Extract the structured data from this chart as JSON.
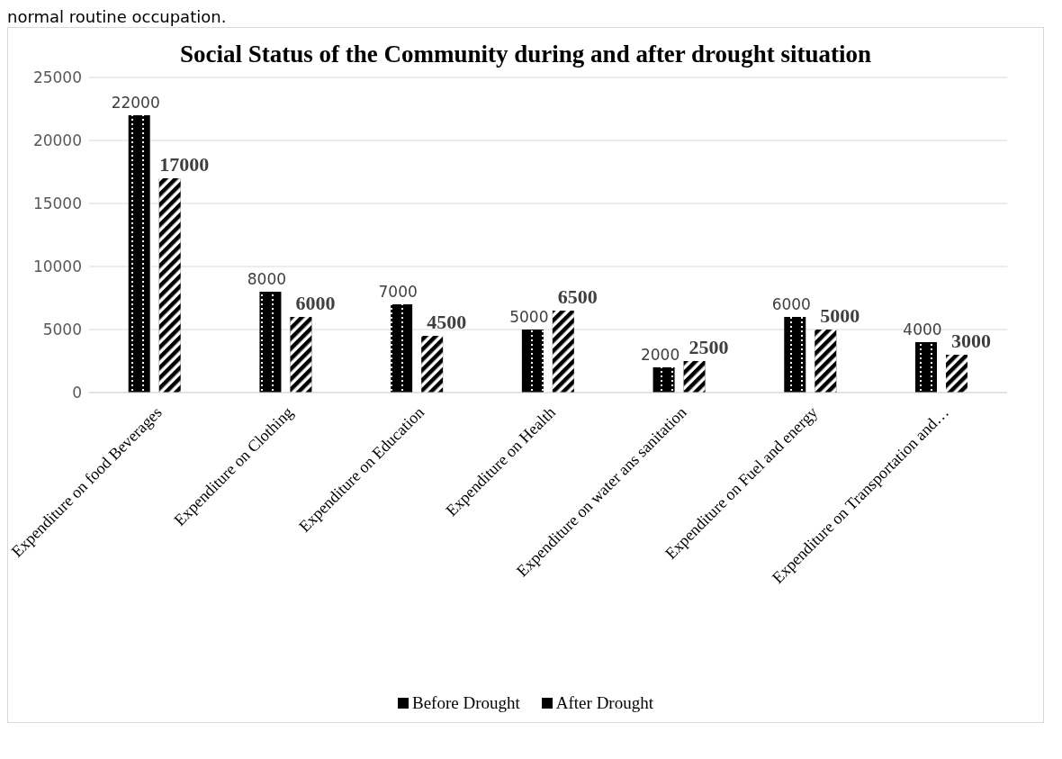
{
  "chart_data": {
    "type": "bar",
    "title": "Social Status of the Community during and after drought situation",
    "categories": [
      "Expenditure on food Beverages",
      "Expenditure on Clothing",
      "Expenditure on Education",
      "Expenditure on Health",
      "Expenditure on water ans sanitation",
      "Expenditure on Fuel and energy",
      "Expenditure on Transportation and…"
    ],
    "series": [
      {
        "name": "Before Drought",
        "color": "#000000",
        "values": [
          22000,
          8000,
          7000,
          5000,
          2000,
          6000,
          4000
        ]
      },
      {
        "name": "After Drought",
        "color": "#000000",
        "values": [
          17000,
          6000,
          4500,
          6500,
          2500,
          5000,
          3000
        ]
      }
    ],
    "ylim": [
      0,
      25000
    ],
    "yticks": [
      0,
      5000,
      10000,
      15000,
      20000,
      25000
    ],
    "grid": "y",
    "legend": "bottom",
    "data_labels": true,
    "annotations": [
      "normal routine occupation."
    ]
  }
}
